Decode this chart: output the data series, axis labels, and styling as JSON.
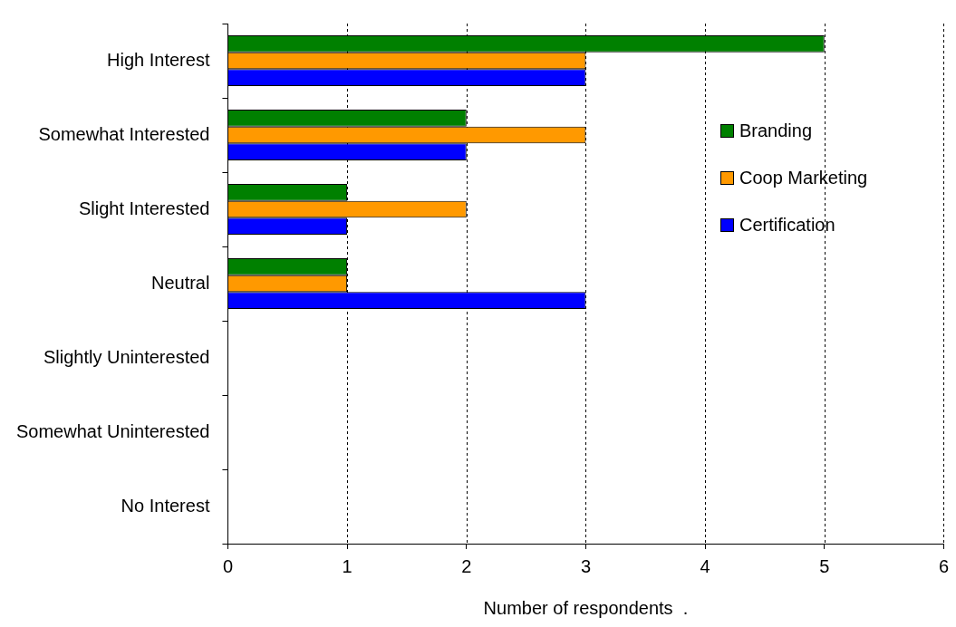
{
  "chart_data": {
    "type": "bar",
    "orientation": "horizontal",
    "xlabel": "Number of respondents  .",
    "categories": [
      "High Interest",
      "Somewhat Interested",
      "Slight Interested",
      "Neutral",
      "Slightly Uninterested",
      "Somewhat Uninterested",
      "No Interest"
    ],
    "series": [
      {
        "name": "Branding",
        "color": "#008000",
        "values": [
          5,
          2,
          1,
          1,
          0,
          0,
          0
        ]
      },
      {
        "name": "Coop Marketing",
        "color": "#ff9900",
        "values": [
          3,
          3,
          2,
          1,
          0,
          0,
          0
        ]
      },
      {
        "name": "Certification",
        "color": "#0000ff",
        "values": [
          3,
          2,
          1,
          3,
          0,
          0,
          0
        ]
      }
    ],
    "xlim": [
      0,
      6
    ],
    "xticks": [
      0,
      1,
      2,
      3,
      4,
      5,
      6
    ],
    "grid": "x",
    "legend": "right"
  }
}
